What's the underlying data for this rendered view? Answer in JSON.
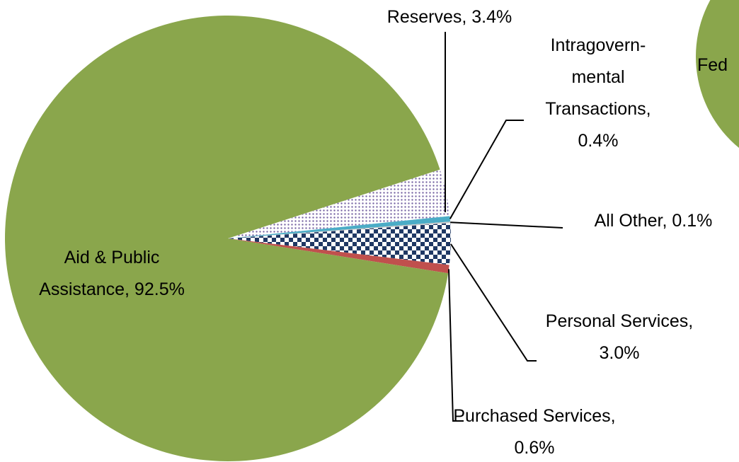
{
  "chart_data": {
    "type": "pie",
    "categories": [
      "Reserves",
      "Intragovern-mental Transactions",
      "All Other",
      "Personal Services",
      "Purchased Services",
      "Aid & Public Assistance"
    ],
    "values": [
      3.4,
      0.4,
      0.1,
      3.0,
      0.6,
      92.5
    ],
    "labels": [
      "Reserves, 3.4%",
      "Intragovern-mental Transactions, 0.4%",
      "All Other, 0.1%",
      "Personal Services, 3.0%",
      "Purchased Services, 0.6%",
      "Aid & Public Assistance, 92.5%"
    ],
    "colors": [
      "#7a68a6",
      "#4bacc6",
      "#c9c9c9",
      "#1f3864",
      "#c0504d",
      "#8aa64c"
    ],
    "patterns": [
      "dots",
      null,
      null,
      "checker",
      null,
      null
    ],
    "annotations": [
      "Fed"
    ]
  }
}
